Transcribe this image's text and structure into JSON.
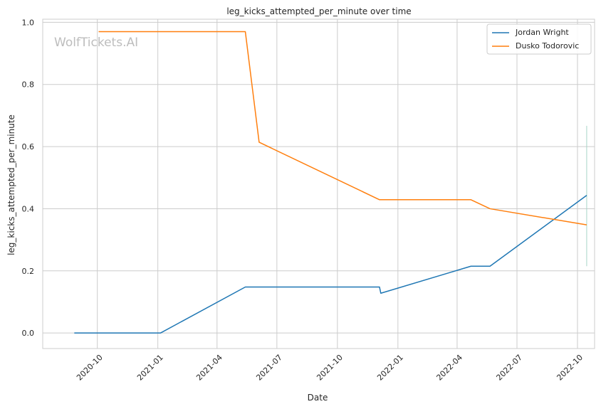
{
  "chart_data": {
    "type": "line",
    "title": "leg_kicks_attempted_per_minute over time",
    "xlabel": "Date",
    "ylabel": "leg_kicks_attempted_per_minute",
    "watermark": "WolfTickets.AI",
    "x_range": [
      "2020-07-10",
      "2022-10-27"
    ],
    "ylim": [
      -0.05,
      1.01
    ],
    "x_ticks": [
      "2020-10-01",
      "2021-01-01",
      "2021-04-01",
      "2021-07-01",
      "2021-10-01",
      "2022-01-01",
      "2022-04-01",
      "2022-07-01",
      "2022-10-01"
    ],
    "x_tick_labels": [
      "2020-10",
      "2021-01",
      "2021-04",
      "2021-07",
      "2021-10",
      "2022-01",
      "2022-04",
      "2022-07",
      "2022-10"
    ],
    "y_ticks": [
      0.0,
      0.2,
      0.4,
      0.6,
      0.8,
      1.0
    ],
    "y_tick_labels": [
      "0.0",
      "0.2",
      "0.4",
      "0.6",
      "0.8",
      "1.0"
    ],
    "grid": true,
    "legend_position": "top-right",
    "series": [
      {
        "name": "Jordan Wright",
        "color": "#1f77b4",
        "points": [
          [
            "2020-08-27",
            0.0
          ],
          [
            "2021-01-05",
            0.0
          ],
          [
            "2021-05-14",
            0.148
          ],
          [
            "2021-12-04",
            0.148
          ],
          [
            "2021-12-06",
            0.128
          ],
          [
            "2022-04-22",
            0.215
          ],
          [
            "2022-05-21",
            0.215
          ],
          [
            "2022-10-15",
            0.443
          ]
        ]
      },
      {
        "name": "Dusko Todorovic",
        "color": "#ff7f0e",
        "points": [
          [
            "2020-10-03",
            0.97
          ],
          [
            "2021-05-14",
            0.97
          ],
          [
            "2021-06-04",
            0.614
          ],
          [
            "2021-12-04",
            0.429
          ],
          [
            "2022-04-22",
            0.429
          ],
          [
            "2022-05-21",
            0.4
          ],
          [
            "2022-10-15",
            0.348
          ]
        ]
      }
    ],
    "error_bar": {
      "date": "2022-10-15",
      "low": 0.215,
      "high": 0.667,
      "color": "#a8d5c8"
    }
  }
}
